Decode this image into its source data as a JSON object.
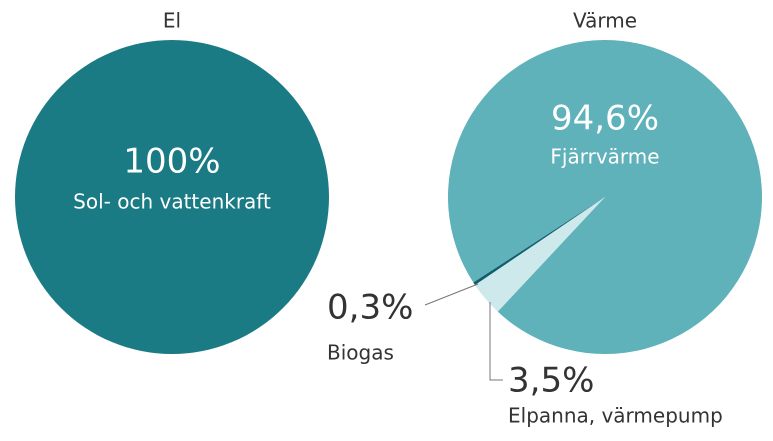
{
  "chart_data": [
    {
      "type": "pie",
      "title": "El",
      "categories": [
        "Sol- och vattenkraft"
      ],
      "values": [
        100
      ],
      "value_labels": [
        "100%"
      ],
      "colors": [
        "#1a7b85"
      ]
    },
    {
      "type": "pie",
      "title": "Värme",
      "categories": [
        "Fjärrvärme",
        "Elpanna, värmepump",
        "Biogas"
      ],
      "values": [
        94.6,
        3.5,
        0.3
      ],
      "value_labels": [
        "94,6%",
        "3,5%",
        "0,3%"
      ],
      "colors": [
        "#5fb1ba",
        "#cde9ec",
        "#0e5f6b"
      ]
    }
  ]
}
